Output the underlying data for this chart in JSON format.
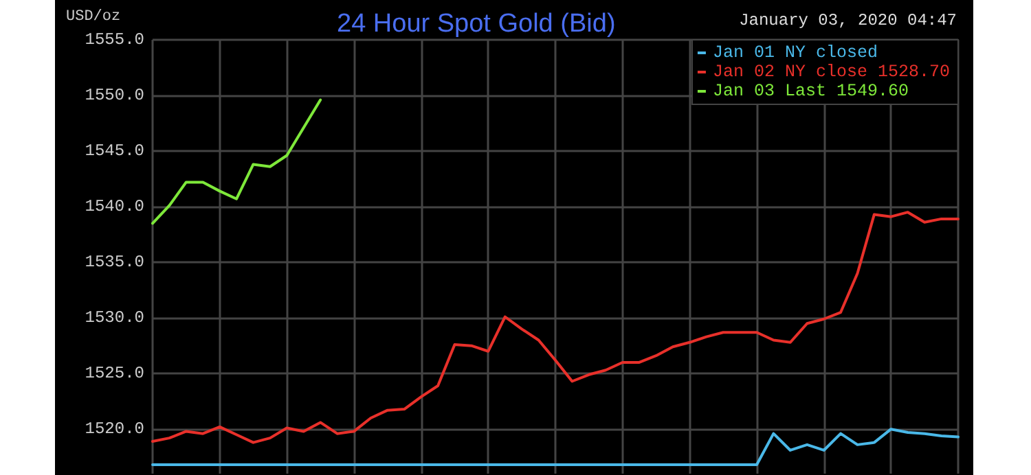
{
  "chart_data": {
    "type": "line",
    "title": "24 Hour Spot Gold (Bid)",
    "ylabel": "USD/oz",
    "annotations": [
      "January 03, 2020 04:47"
    ],
    "categories": [
      null,
      null,
      null,
      null,
      null,
      null,
      null,
      null,
      null,
      null,
      null,
      null,
      null,
      null,
      null,
      null,
      null,
      null,
      null,
      null,
      null,
      null,
      null,
      null,
      null,
      null,
      null,
      null,
      null,
      null,
      null,
      null,
      null,
      null,
      null,
      null,
      null,
      null,
      null,
      null,
      null,
      null,
      null,
      null,
      null,
      null,
      null,
      null,
      null
    ],
    "series": [
      {
        "name": "Jan 01 NY closed",
        "color": "#4ab8e8",
        "values": [
          1516.8,
          1516.8,
          1516.8,
          1516.8,
          1516.8,
          1516.8,
          1516.8,
          1516.8,
          1516.8,
          1516.8,
          1516.8,
          1516.8,
          1516.8,
          1516.8,
          1516.8,
          1516.8,
          1516.8,
          1516.8,
          1516.8,
          1516.8,
          1516.8,
          1516.8,
          1516.8,
          1516.8,
          1516.8,
          1516.8,
          1516.8,
          1516.8,
          1516.8,
          1516.8,
          1516.8,
          1516.8,
          1516.8,
          1516.8,
          1516.8,
          1516.8,
          1516.8,
          1519.6,
          1518.1,
          1518.6,
          1518.1,
          1519.6,
          1518.6,
          1518.8,
          1520.0,
          1519.7,
          1519.6,
          1519.4,
          1519.3
        ]
      },
      {
        "name": "Jan 02 NY close 1528.70",
        "color": "#e8302a",
        "values": [
          1518.9,
          1519.2,
          1519.8,
          1519.6,
          1520.2,
          1519.5,
          1518.8,
          1519.2,
          1520.1,
          1519.8,
          1520.6,
          1519.6,
          1519.8,
          1521.0,
          1521.7,
          1521.8,
          1522.9,
          1523.9,
          1527.6,
          1527.5,
          1527.0,
          1530.1,
          1529.0,
          1528.0,
          1526.2,
          1524.3,
          1524.9,
          1525.3,
          1526.0,
          1526.0,
          1526.6,
          1527.4,
          1527.8,
          1528.3,
          1528.7,
          1528.7,
          1528.7,
          1528.0,
          1527.8,
          1529.5,
          1529.9,
          1530.5,
          1534.0,
          1539.3,
          1539.1,
          1539.5,
          1538.6,
          1538.9,
          1538.9
        ]
      },
      {
        "name": "Jan 03 Last 1549.60",
        "color": "#7ee83a",
        "values": [
          1538.5,
          1540.1,
          1542.2,
          1542.2,
          1541.4,
          1540.7,
          1543.8,
          1543.6,
          1544.6,
          1547.1,
          1549.6,
          null,
          null,
          null,
          null,
          null,
          null,
          null,
          null,
          null,
          null,
          null,
          null,
          null,
          null,
          null,
          null,
          null,
          null,
          null,
          null,
          null,
          null,
          null,
          null,
          null,
          null,
          null,
          null,
          null,
          null,
          null,
          null,
          null,
          null,
          null,
          null,
          null,
          null
        ]
      }
    ],
    "ylim": [
      1516,
      1555
    ],
    "yticks": [
      {
        "value": 1520,
        "label": "1520.0"
      },
      {
        "value": 1525,
        "label": "1525.0"
      },
      {
        "value": 1530,
        "label": "1530.0"
      },
      {
        "value": 1535,
        "label": "1535.0"
      },
      {
        "value": 1540,
        "label": "1540.0"
      },
      {
        "value": 1545,
        "label": "1545.0"
      },
      {
        "value": 1550,
        "label": "1550.0"
      },
      {
        "value": 1555,
        "label": "1555.0"
      }
    ],
    "tick_labels": "y",
    "grid": true,
    "legend": "top right",
    "marker": "none",
    "line_style": "solid"
  }
}
